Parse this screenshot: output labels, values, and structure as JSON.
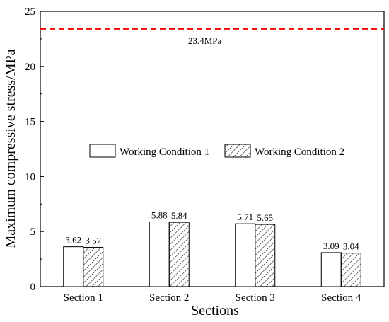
{
  "chart_data": {
    "type": "bar",
    "xlabel": "Sections",
    "ylabel": "Maximum compressive stress/MPa",
    "ylim": [
      0,
      25
    ],
    "yticks": [
      0,
      5,
      10,
      15,
      20,
      25
    ],
    "categories": [
      "Section 1",
      "Section 2",
      "Section 3",
      "Section 4"
    ],
    "series": [
      {
        "name": "Working Condition 1",
        "values": [
          3.62,
          5.88,
          5.71,
          3.09
        ],
        "fill": "plain"
      },
      {
        "name": "Working Condition 2",
        "values": [
          3.57,
          5.84,
          5.65,
          3.04
        ],
        "fill": "hatched"
      }
    ],
    "data_labels": [
      [
        "3.62",
        "5.88",
        "5.71",
        "3.09"
      ],
      [
        "3.57",
        "5.84",
        "5.65",
        "3.04"
      ]
    ],
    "reference_line": {
      "value": 23.4,
      "label": "23.4MPa",
      "color": "#ff0000",
      "style": "dashed"
    },
    "legend_position": "center",
    "grid": false
  }
}
